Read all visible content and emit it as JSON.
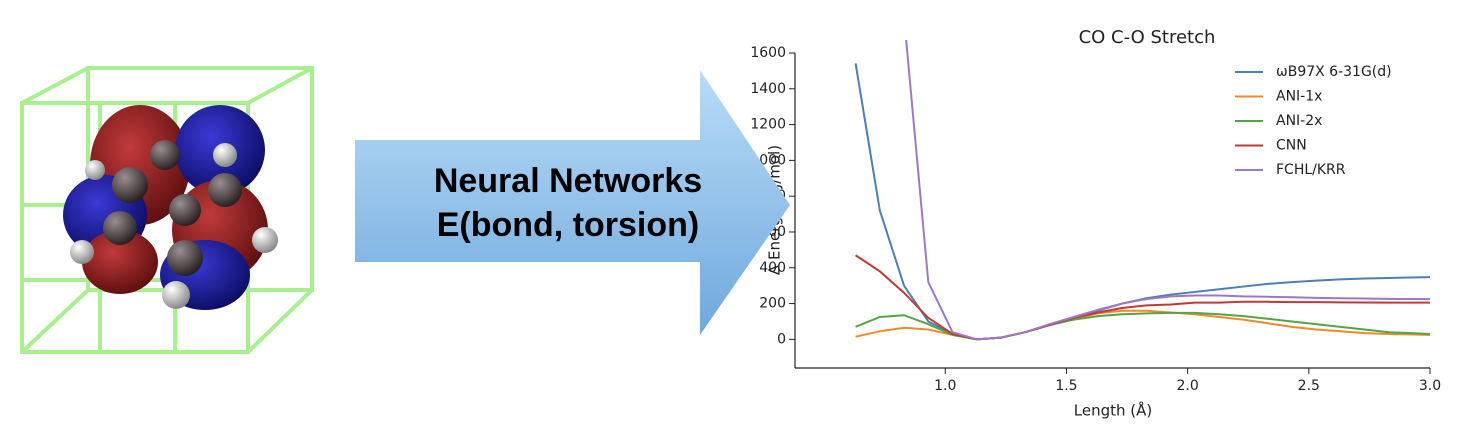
{
  "arrow": {
    "lines": [
      "Neural Networks",
      "E(bond, torsion)"
    ]
  },
  "chart_data": {
    "type": "line",
    "title": "CO C-O Stretch",
    "x_label": "Length (Å)",
    "y_label": "Δ Energy (kJ/mol)",
    "x": [
      0.63,
      0.73,
      0.83,
      0.93,
      1.03,
      1.13,
      1.23,
      1.33,
      1.43,
      1.53,
      1.63,
      1.73,
      1.83,
      1.93,
      2.03,
      2.13,
      2.23,
      2.33,
      2.43,
      2.53,
      2.63,
      2.73,
      2.83,
      3.0
    ],
    "series": [
      {
        "name": "ωB97X 6-31G(d)",
        "color": "#4c7fb5",
        "values": [
          1542,
          720,
          300,
          100,
          30,
          0,
          10,
          40,
          80,
          120,
          160,
          200,
          230,
          250,
          265,
          280,
          295,
          310,
          320,
          328,
          335,
          340,
          343,
          348
        ]
      },
      {
        "name": "ANI-1x",
        "color": "#f0892c",
        "values": [
          15,
          45,
          65,
          55,
          25,
          0,
          10,
          40,
          80,
          115,
          145,
          160,
          160,
          150,
          140,
          125,
          110,
          90,
          70,
          55,
          45,
          35,
          30,
          25
        ]
      },
      {
        "name": "ANI-2x",
        "color": "#54a446",
        "values": [
          70,
          125,
          135,
          85,
          25,
          0,
          10,
          40,
          80,
          110,
          130,
          140,
          145,
          148,
          148,
          140,
          130,
          115,
          100,
          85,
          70,
          55,
          40,
          30
        ]
      },
      {
        "name": "CNN",
        "color": "#c13a38",
        "values": [
          470,
          380,
          260,
          120,
          30,
          0,
          10,
          40,
          80,
          120,
          150,
          175,
          190,
          195,
          205,
          205,
          210,
          210,
          208,
          208,
          207,
          206,
          205,
          205
        ]
      },
      {
        "name": "FCHL/KRR",
        "color": "#9b79c4",
        "values": [
          null,
          null,
          1800,
          320,
          40,
          0,
          10,
          40,
          85,
          125,
          165,
          200,
          225,
          240,
          245,
          245,
          240,
          238,
          235,
          232,
          230,
          228,
          226,
          225
        ]
      }
    ],
    "xlim": [
      0.38,
      3.0
    ],
    "xticks": [
      {
        "value": 1,
        "label": "1.0"
      },
      1.5,
      {
        "value": 2,
        "label": "2.0"
      },
      2.5,
      {
        "value": 3,
        "label": "3.0"
      }
    ],
    "ylim": [
      -160,
      1600
    ],
    "yticks": [
      0,
      200,
      400,
      600,
      800,
      1000,
      1200,
      1400,
      1600
    ],
    "grid": false,
    "legend": "upper right"
  }
}
